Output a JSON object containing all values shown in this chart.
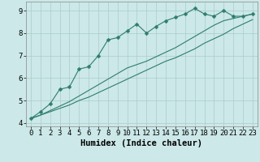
{
  "xlabel": "Humidex (Indice chaleur)",
  "x_values": [
    0,
    1,
    2,
    3,
    4,
    5,
    6,
    7,
    8,
    9,
    10,
    11,
    12,
    13,
    14,
    15,
    16,
    17,
    18,
    19,
    20,
    21,
    22,
    23
  ],
  "line1_y": [
    4.2,
    4.5,
    4.85,
    5.5,
    5.6,
    6.4,
    6.5,
    7.0,
    7.7,
    7.8,
    8.1,
    8.4,
    8.0,
    8.3,
    8.55,
    8.7,
    8.85,
    9.1,
    8.85,
    8.75,
    9.0,
    8.75,
    8.75,
    8.85
  ],
  "line2_y": [
    4.2,
    4.35,
    4.5,
    4.65,
    4.8,
    5.0,
    5.15,
    5.35,
    5.55,
    5.75,
    5.95,
    6.15,
    6.35,
    6.55,
    6.75,
    6.9,
    7.1,
    7.3,
    7.55,
    7.75,
    7.95,
    8.2,
    8.4,
    8.6
  ],
  "line3_y": [
    4.2,
    4.35,
    4.55,
    4.75,
    4.95,
    5.2,
    5.45,
    5.7,
    5.95,
    6.2,
    6.45,
    6.6,
    6.75,
    6.95,
    7.15,
    7.35,
    7.6,
    7.85,
    8.1,
    8.35,
    8.55,
    8.65,
    8.75,
    8.85
  ],
  "line_color": "#2e7d6e",
  "marker": "D",
  "markersize": 2.5,
  "bg_color": "#cce8e8",
  "grid_color": "#aacccc",
  "ylim": [
    3.85,
    9.4
  ],
  "xlim": [
    -0.5,
    23.5
  ],
  "yticks": [
    4,
    5,
    6,
    7,
    8,
    9
  ],
  "xticks": [
    0,
    1,
    2,
    3,
    4,
    5,
    6,
    7,
    8,
    9,
    10,
    11,
    12,
    13,
    14,
    15,
    16,
    17,
    18,
    19,
    20,
    21,
    22,
    23
  ],
  "tick_fontsize": 6.5,
  "xlabel_fontsize": 7.5
}
